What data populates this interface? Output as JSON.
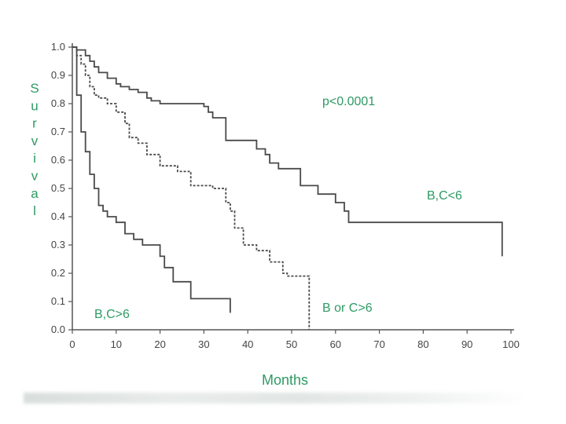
{
  "chart_data": {
    "type": "line",
    "title": "",
    "xlabel": "Months",
    "ylabel": "Survival",
    "xlim": [
      0,
      100
    ],
    "ylim": [
      0,
      1.0
    ],
    "xticks": [
      0,
      10,
      20,
      30,
      40,
      50,
      60,
      70,
      80,
      90,
      100
    ],
    "yticks": [
      0.0,
      0.1,
      0.2,
      0.3,
      0.4,
      0.5,
      0.6,
      0.7,
      0.8,
      0.9,
      1.0
    ],
    "ytick_labels": [
      "0.0",
      "0.1",
      "0.2",
      "0.3",
      "0.4",
      "0.5",
      "0.6",
      "0.7",
      "0.8",
      "0.9",
      "1.0"
    ],
    "annotation": "p<0.0001",
    "series": [
      {
        "name": "B,C<6",
        "style": "solid",
        "x": [
          0,
          1,
          3,
          4,
          5,
          6,
          8,
          10,
          11,
          13,
          15,
          17,
          18,
          20,
          27,
          30,
          31,
          32,
          35,
          42,
          44,
          45,
          47,
          52,
          56,
          60,
          62,
          63,
          98,
          98
        ],
        "y": [
          1.0,
          0.99,
          0.97,
          0.95,
          0.93,
          0.91,
          0.89,
          0.87,
          0.86,
          0.85,
          0.84,
          0.82,
          0.81,
          0.8,
          0.8,
          0.79,
          0.77,
          0.75,
          0.67,
          0.64,
          0.62,
          0.59,
          0.57,
          0.51,
          0.48,
          0.45,
          0.42,
          0.38,
          0.38,
          0.26
        ]
      },
      {
        "name": "B or C>6",
        "style": "dashed",
        "x": [
          0,
          1,
          2,
          3,
          4,
          5,
          6,
          8,
          10,
          12,
          13,
          15,
          17,
          20,
          24,
          27,
          32,
          35,
          36,
          37,
          39,
          42,
          45,
          48,
          49,
          53,
          54,
          54
        ],
        "y": [
          1.0,
          0.97,
          0.94,
          0.9,
          0.86,
          0.83,
          0.82,
          0.8,
          0.77,
          0.73,
          0.68,
          0.66,
          0.62,
          0.58,
          0.56,
          0.51,
          0.5,
          0.45,
          0.42,
          0.36,
          0.3,
          0.28,
          0.24,
          0.2,
          0.19,
          0.19,
          0.19,
          0.0
        ]
      },
      {
        "name": "B,C>6",
        "style": "solid",
        "x": [
          0,
          1,
          2,
          3,
          4,
          5,
          6,
          7,
          8,
          10,
          12,
          14,
          16,
          20,
          21,
          23,
          27,
          32,
          36,
          36
        ],
        "y": [
          1.0,
          0.83,
          0.7,
          0.63,
          0.55,
          0.5,
          0.44,
          0.42,
          0.4,
          0.38,
          0.34,
          0.32,
          0.3,
          0.26,
          0.22,
          0.17,
          0.11,
          0.11,
          0.11,
          0.06
        ]
      }
    ]
  }
}
